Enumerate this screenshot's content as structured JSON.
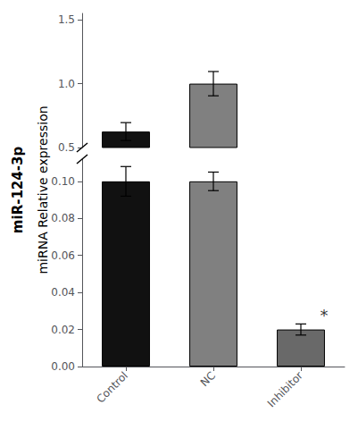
{
  "chart_data": [
    {
      "type": "bar",
      "categories": [
        "Control",
        "NC",
        "Inhibitor"
      ],
      "values": [
        0.625,
        1.0,
        null
      ],
      "errors": [
        0.07,
        0.095,
        null
      ],
      "colors": [
        "#111111",
        "#808080"
      ],
      "ylim": [
        0.5,
        1.55
      ],
      "yticks": [
        0.5,
        {
          "value": 1.0,
          "label": "1.0"
        },
        1.5
      ],
      "grid": false,
      "tick_labels": "y"
    },
    {
      "type": "bar",
      "categories": [
        "Control",
        "NC",
        "Inhibitor"
      ],
      "values": [
        0.1,
        0.1,
        0.02
      ],
      "errors": [
        0.008,
        0.005,
        0.003
      ],
      "colors": [
        "#111111",
        "#808080",
        "#696969"
      ],
      "ylim": [
        0.0,
        0.112
      ],
      "yticks": [
        {
          "value": 0.0,
          "label": "0.00"
        },
        {
          "value": 0.02,
          "label": "0.02"
        },
        {
          "value": 0.04,
          "label": "0.04"
        },
        {
          "value": 0.06,
          "label": "0.06"
        },
        {
          "value": 0.08,
          "label": "0.08"
        },
        {
          "value": 0.1,
          "label": "0.10"
        }
      ],
      "grid": false,
      "ylabel": "miRNA Relative expression",
      "annotations": [
        {
          "text": "miR-124-3p"
        },
        {
          "text": "*",
          "category": "Inhibitor"
        }
      ]
    }
  ]
}
